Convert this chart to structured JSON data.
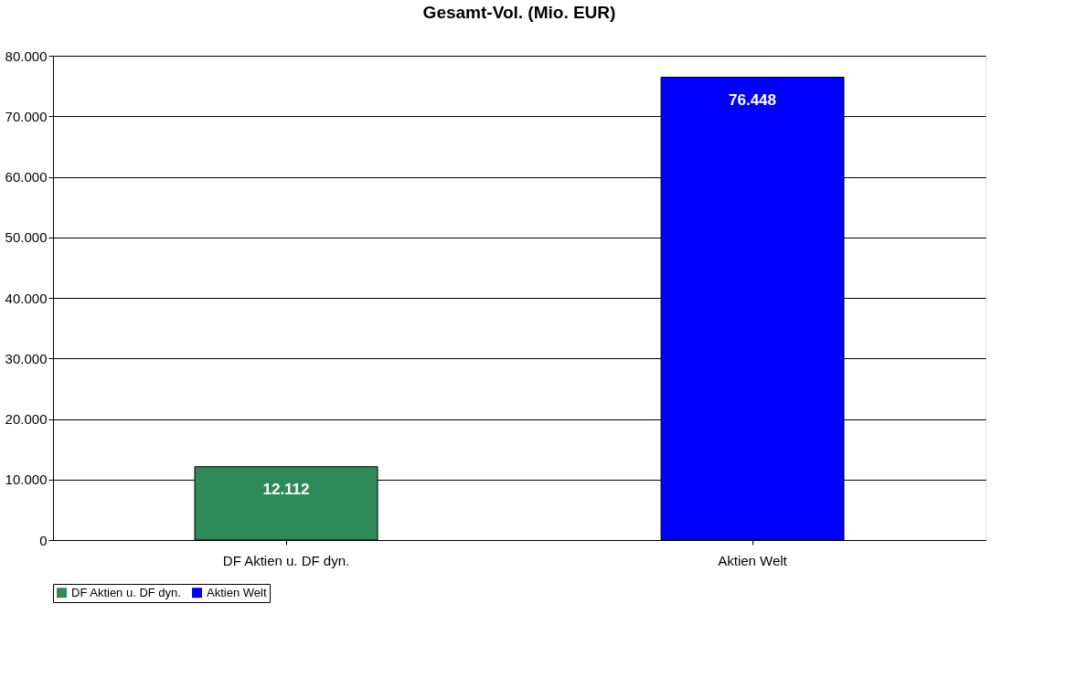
{
  "chart_data": {
    "type": "bar",
    "title": "Gesamt-Vol. (Mio. EUR)",
    "categories": [
      "DF Aktien u. DF dyn.",
      "Aktien Welt"
    ],
    "series": [
      {
        "name": "DF Aktien u. DF dyn.",
        "color": "#2e8b57",
        "values": [
          12112,
          null
        ],
        "value_labels": [
          "12.112",
          null
        ]
      },
      {
        "name": "Aktien Welt",
        "color": "#0000ff",
        "values": [
          null,
          76448
        ],
        "value_labels": [
          null,
          "76.448"
        ]
      }
    ],
    "ylim": [
      0,
      80000
    ],
    "yticks": [
      {
        "value": 0,
        "label": "0"
      },
      {
        "value": 10000,
        "label": "10.000"
      },
      {
        "value": 20000,
        "label": "20.000"
      },
      {
        "value": 30000,
        "label": "30.000"
      },
      {
        "value": 40000,
        "label": "40.000"
      },
      {
        "value": 50000,
        "label": "50.000"
      },
      {
        "value": 60000,
        "label": "60.000"
      },
      {
        "value": 70000,
        "label": "70.000"
      },
      {
        "value": 80000,
        "label": "80.000"
      }
    ],
    "grid": "y",
    "legend": "bottom"
  }
}
